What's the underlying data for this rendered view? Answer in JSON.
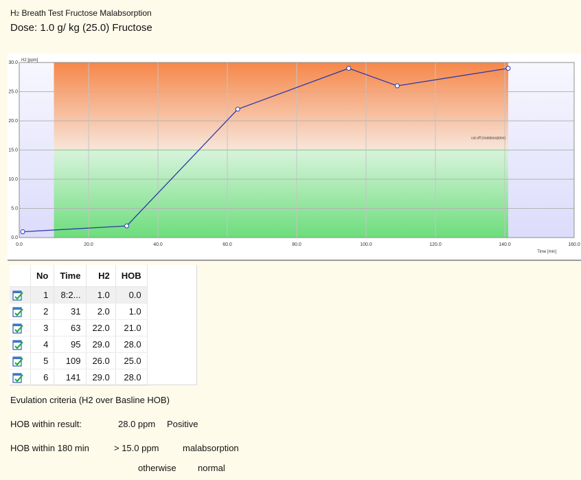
{
  "header": {
    "title_prefix": "H",
    "title_sub": "2",
    "title_rest": " Breath Test Fructose Malabsorption",
    "dose": "Dose: 1.0 g/ kg (25.0) Fructose"
  },
  "chart_data": {
    "type": "line",
    "x": [
      1,
      31,
      63,
      95,
      109,
      141
    ],
    "y": [
      1.0,
      2.0,
      22.0,
      29.0,
      26.0,
      29.0
    ],
    "xlim": [
      0,
      160
    ],
    "ylim": [
      0,
      30
    ],
    "x_ticks": [
      "0.0",
      "20.0",
      "40.0",
      "60.0",
      "80.0",
      "100.0",
      "120.0",
      "140.0",
      "160.0"
    ],
    "y_ticks": [
      "0.0",
      "5.0",
      "10.0",
      "15.0",
      "20.0",
      "25.0",
      "30.0"
    ],
    "xlabel": "Time [min]",
    "ylabel": "H2 [ppm]",
    "annotation": "cut-off (malabsorption)",
    "threshold_y": 15,
    "band_x": [
      10,
      141
    ],
    "grid": true,
    "colors": {
      "line": "#2b3aa8",
      "band_top": "#f6874a",
      "band_mid": "#f7e4d8",
      "band_low": "#6ddd7c",
      "outside": "#dcdcfb"
    }
  },
  "table": {
    "columns": [
      "",
      "No",
      "Time",
      "H2",
      "HOB"
    ],
    "rows": [
      {
        "no": "1",
        "time": "8:2...",
        "h2": "1.0",
        "hob": "0.0"
      },
      {
        "no": "2",
        "time": "31",
        "h2": "2.0",
        "hob": "1.0"
      },
      {
        "no": "3",
        "time": "63",
        "h2": "22.0",
        "hob": "21.0"
      },
      {
        "no": "4",
        "time": "95",
        "h2": "29.0",
        "hob": "28.0"
      },
      {
        "no": "5",
        "time": "109",
        "h2": "26.0",
        "hob": "25.0"
      },
      {
        "no": "6",
        "time": "141",
        "h2": "29.0",
        "hob": "28.0"
      }
    ],
    "row_icon": "edit-check-icon"
  },
  "criteria": {
    "heading": "Evulation criteria (H2 over Basline HOB)",
    "result_label": "HOB within result:",
    "result_value": "28.0 ppm",
    "result_status": "Positive",
    "window_label": "HOB within 180 min",
    "window_value": "> 15.0 ppm",
    "window_status": "malabsorption",
    "otherwise_label": "otherwise",
    "otherwise_status": "normal"
  }
}
